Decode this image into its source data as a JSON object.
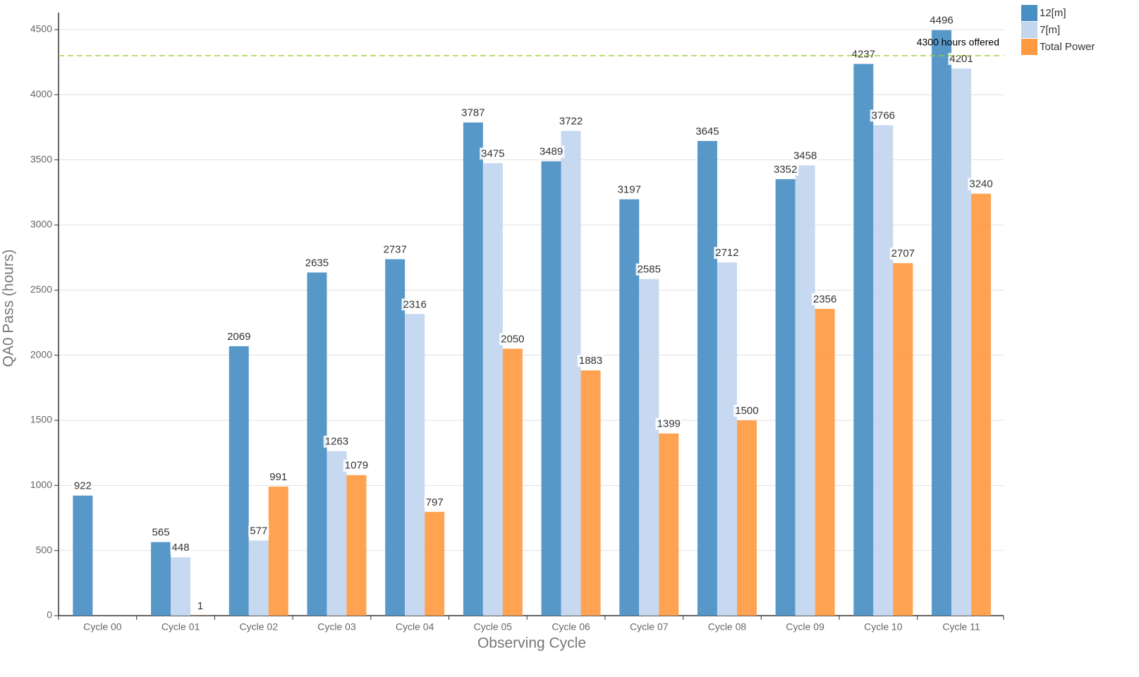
{
  "chart_data": {
    "type": "bar",
    "x_label": "Observing Cycle",
    "y_label": "QA0 Pass (hours)",
    "categories": [
      "Cycle 00",
      "Cycle 01",
      "Cycle 02",
      "Cycle 03",
      "Cycle 04",
      "Cycle 05",
      "Cycle 06",
      "Cycle 07",
      "Cycle 08",
      "Cycle 09",
      "Cycle 10",
      "Cycle 11"
    ],
    "series": [
      {
        "name": "12[m]",
        "color": "#4a8fc4",
        "values": [
          922,
          565,
          2069,
          2635,
          2737,
          3787,
          3489,
          3197,
          3645,
          3352,
          4237,
          4496
        ]
      },
      {
        "name": "7[m]",
        "color": "#c2d6ef",
        "values": [
          null,
          448,
          577,
          1263,
          2316,
          3475,
          3722,
          2585,
          2712,
          3458,
          3766,
          4201
        ]
      },
      {
        "name": "Total Power",
        "color": "#ff9a42",
        "values": [
          null,
          1,
          991,
          1079,
          797,
          2050,
          1883,
          1399,
          1500,
          2356,
          2707,
          3240
        ]
      }
    ],
    "reference_line": {
      "value": 4300,
      "label": "4300 hours offered",
      "color": "#9acd32"
    },
    "ylim": [
      0,
      4630
    ],
    "yticks": [
      0,
      500,
      1000,
      1500,
      2000,
      2500,
      3000,
      3500,
      4000,
      4500
    ],
    "grid": true,
    "legend": "top-right"
  }
}
